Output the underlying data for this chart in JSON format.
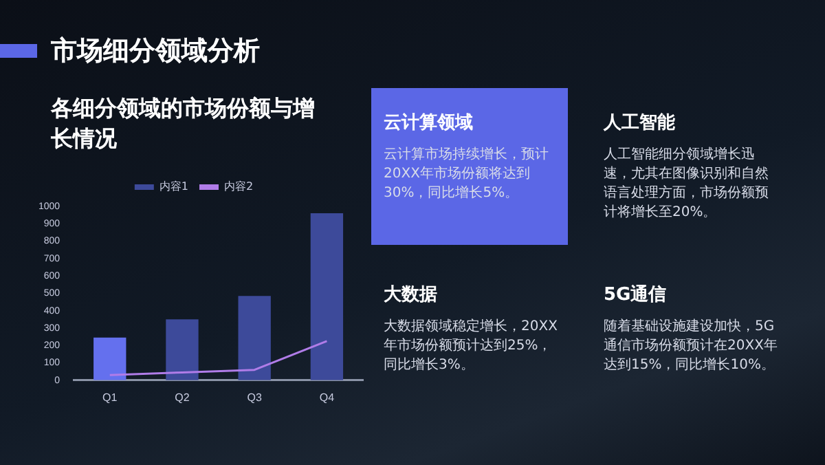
{
  "chart_data": {
    "type": "bar",
    "title": "市场细分领域分析",
    "subtitle": "各细分领域的市场份额与增长情况",
    "categories": [
      "Q1",
      "Q2",
      "Q3",
      "Q4"
    ],
    "series": [
      {
        "name": "内容1",
        "color": "#3d4a9a",
        "colors": [
          "#6470ee",
          "#3d4a9a",
          "#3d4a9a",
          "#3d4a9a"
        ],
        "values": [
          245,
          350,
          485,
          960
        ]
      },
      {
        "name": "内容2",
        "type": "line",
        "color": "#b07ce8",
        "values": [
          30,
          45,
          60,
          225
        ]
      }
    ],
    "ylim": [
      0,
      1000
    ],
    "yticks": [
      0,
      100,
      200,
      300,
      400,
      500,
      600,
      700,
      800,
      900,
      1000
    ],
    "grid": false,
    "legend": "top",
    "marker": "none",
    "annotations": [
      "云计算领域",
      "云计算市场持续增长，预计20XX年市场份额将达到30%，同比增长5%。",
      "人工智能",
      "人工智能细分领域增长迅速，尤其在图像识别和自然语言处理方面，市场份额预计将增长至20%。",
      "大数据",
      "大数据领域稳定增长，20XX年市场份额预计达到25%，同比增长3%。",
      "5G通信",
      "随着基础设施建设加快，5G通信市场份额预计在20XX年达到15%，同比增长10%。"
    ]
  }
}
